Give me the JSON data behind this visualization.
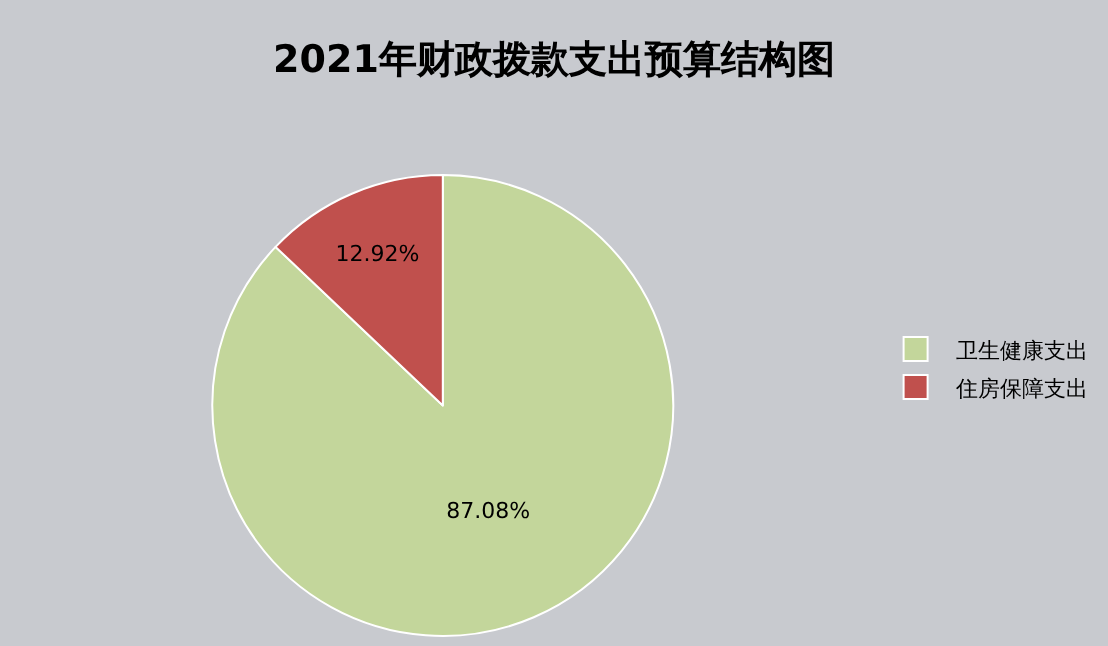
{
  "chart_data": {
    "type": "pie",
    "title": "2021年财政拨款支出预算结构图",
    "categories": [
      "卫生健康支出",
      "住房保障支出"
    ],
    "values": [
      87.08,
      12.92
    ],
    "value_labels": [
      "87.08%",
      "12.92%"
    ],
    "colors": [
      "#c3d69b",
      "#c0504d"
    ],
    "legend": "right"
  }
}
